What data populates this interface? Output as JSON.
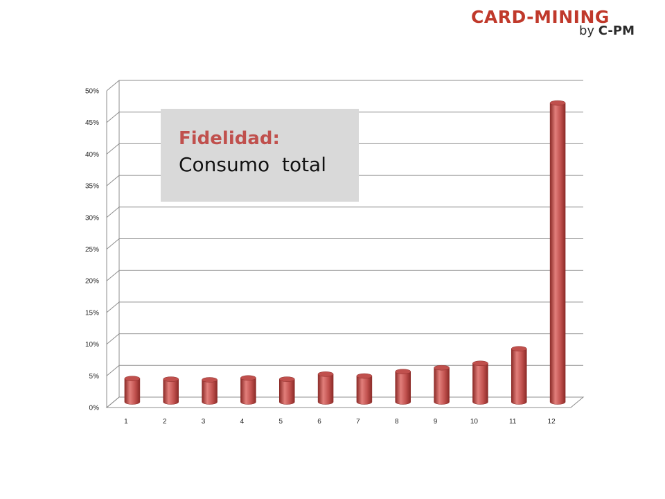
{
  "logo": {
    "brand": "CARD-MINING",
    "by": "by",
    "company": "C-PM"
  },
  "callout": {
    "heading": "Fidelidad:",
    "subtitle": "Consumo  total"
  },
  "colors": {
    "bar": "#c0504d",
    "bar_dark": "#8b2a27",
    "bar_light": "#e27f7b",
    "grid": "#8c8c8c",
    "callout_bg": "#d9d9d9",
    "brand_red": "#c0392b"
  },
  "chart_data": {
    "type": "bar",
    "style": "3d-cylinder",
    "categories": [
      "1",
      "2",
      "3",
      "4",
      "5",
      "6",
      "7",
      "8",
      "9",
      "10",
      "11",
      "12"
    ],
    "values": [
      3.7,
      3.6,
      3.5,
      3.8,
      3.6,
      4.4,
      4.1,
      4.8,
      5.4,
      6.1,
      8.4,
      47.2
    ],
    "ylim": [
      0,
      50
    ],
    "yticks": [
      "0%",
      "5%",
      "10%",
      "15%",
      "20%",
      "25%",
      "30%",
      "35%",
      "40%",
      "45%",
      "50%"
    ],
    "grid": true,
    "title": "",
    "xlabel": "",
    "ylabel": ""
  }
}
